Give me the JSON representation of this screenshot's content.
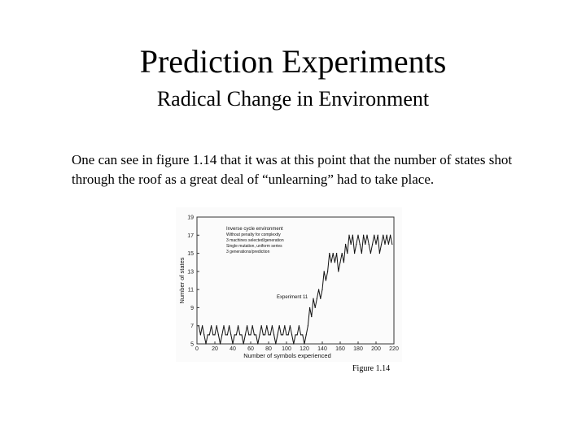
{
  "slide": {
    "title": "Prediction Experiments",
    "subtitle": "Radical Change in Environment",
    "body": "One can see in figure 1.14 that it was at this point that the number of states shot through the roof as a great deal of “unlearning” had to take place.",
    "caption": "Figure 1.14"
  },
  "chart_data": {
    "type": "line",
    "xlabel": "Number of symbols experienced",
    "ylabel": "Number of states",
    "xlim": [
      0,
      220
    ],
    "ylim": [
      5,
      19
    ],
    "x_ticks": [
      "0",
      "20",
      "40",
      "60",
      "80",
      "100",
      "120",
      "140",
      "160",
      "180",
      "200",
      "220"
    ],
    "y_ticks": [
      "5",
      "7",
      "9",
      "11",
      "13",
      "15",
      "17",
      "19"
    ],
    "legend_lines": [
      "Inverse cycle environment",
      "Without penalty for complexity",
      "3 machines selected/generation",
      "Single mutation, uniform series",
      "3 generations/prediction"
    ],
    "annotation": "Experiment 11",
    "series": [
      {
        "x": [
          2,
          4,
          6,
          8,
          10,
          12,
          14,
          16,
          18,
          20,
          22,
          24,
          26,
          28,
          30,
          32,
          34,
          36,
          38,
          40,
          42,
          44,
          46,
          48,
          50,
          52,
          54,
          56,
          58,
          60,
          62,
          64,
          66,
          68,
          70,
          72,
          74,
          76,
          78,
          80,
          82,
          84,
          86,
          88,
          90,
          92,
          94,
          96,
          98,
          100,
          102,
          104,
          106,
          108,
          110,
          112,
          114,
          116,
          118,
          120,
          122,
          124,
          126,
          128,
          130,
          132,
          134,
          136,
          138,
          140,
          142,
          144,
          146,
          148,
          150,
          152,
          154,
          156,
          158,
          160,
          162,
          164,
          166,
          168,
          170,
          172,
          174,
          176,
          178,
          180,
          182,
          184,
          186,
          188,
          190,
          192,
          194,
          196,
          198,
          200,
          202,
          204,
          206,
          208,
          210,
          212,
          214,
          216,
          218
        ],
        "y": [
          7,
          6,
          7,
          6,
          5,
          6,
          6,
          7,
          6,
          6,
          7,
          6,
          5,
          6,
          7,
          6,
          6,
          7,
          6,
          5,
          6,
          6,
          7,
          6,
          6,
          5,
          6,
          7,
          6,
          6,
          7,
          6,
          6,
          5,
          6,
          7,
          6,
          6,
          7,
          6,
          6,
          7,
          6,
          5,
          6,
          7,
          6,
          6,
          7,
          6,
          6,
          7,
          6,
          5,
          6,
          6,
          7,
          6,
          6,
          5,
          6,
          7,
          9,
          8,
          10,
          9,
          10,
          11,
          10,
          11,
          13,
          12,
          13,
          15,
          14,
          15,
          14,
          15,
          13,
          14,
          15,
          14,
          16,
          15,
          17,
          16,
          17,
          15,
          16,
          17,
          16,
          15,
          17,
          16,
          17,
          16,
          15,
          16,
          17,
          16,
          17,
          15,
          16,
          17,
          16,
          17,
          16,
          17,
          16
        ]
      }
    ]
  }
}
